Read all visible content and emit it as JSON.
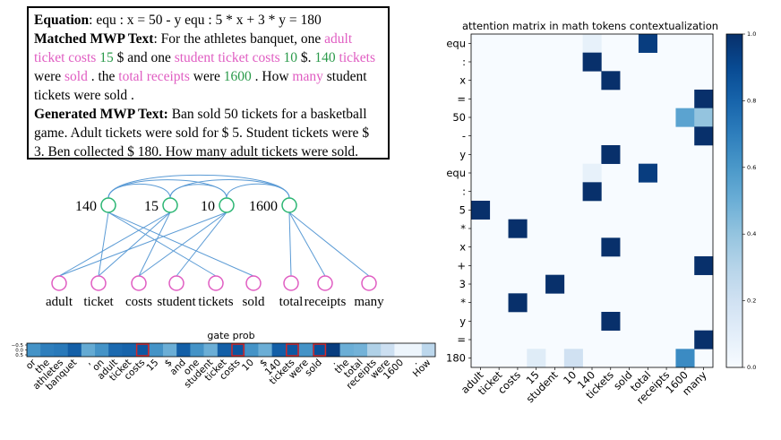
{
  "textbox": {
    "equation_label": "Equation",
    "equation_text": ": equ : x = 50 - y equ : 5 * x + 3 * y = 180",
    "matched_label": "Matched MWP Text",
    "matched_segments": [
      {
        "t": ": For the athletes banquet, one ",
        "c": "black"
      },
      {
        "t": "adult ticket costs",
        "c": "pink"
      },
      {
        "t": " ",
        "c": "black"
      },
      {
        "t": "15",
        "c": "green"
      },
      {
        "t": " $ and one ",
        "c": "black"
      },
      {
        "t": "student ticket costs",
        "c": "pink"
      },
      {
        "t": " ",
        "c": "black"
      },
      {
        "t": "10",
        "c": "green"
      },
      {
        "t": " $. ",
        "c": "black"
      },
      {
        "t": "140",
        "c": "green"
      },
      {
        "t": " ",
        "c": "black"
      },
      {
        "t": "tickets",
        "c": "pink"
      },
      {
        "t": " were ",
        "c": "black"
      },
      {
        "t": "sold",
        "c": "pink"
      },
      {
        "t": " . the ",
        "c": "black"
      },
      {
        "t": "total receipts",
        "c": "pink"
      },
      {
        "t": " were ",
        "c": "black"
      },
      {
        "t": "1600",
        "c": "green"
      },
      {
        "t": " . How ",
        "c": "black"
      },
      {
        "t": "many",
        "c": "pink"
      },
      {
        "t": " student tickets were sold .",
        "c": "black"
      }
    ],
    "generated_label": "Generated MWP Text:",
    "generated_text": " Ban sold 50 tickets for a basketball game. Adult tickets were sold for $ 5. Student tickets were $ 3. Ben collected $ 180. How many adult tickets were sold."
  },
  "graph": {
    "numbers": [
      "140",
      "15",
      "10",
      "1600"
    ],
    "words": [
      "adult",
      "ticket",
      "costs",
      "student",
      "tickets",
      "sold",
      "total",
      "receipts",
      "many"
    ],
    "edges": [
      [
        0,
        1
      ],
      [
        0,
        4
      ],
      [
        0,
        5
      ],
      [
        1,
        0
      ],
      [
        1,
        1
      ],
      [
        1,
        2
      ],
      [
        2,
        0
      ],
      [
        2,
        2
      ],
      [
        2,
        3
      ],
      [
        3,
        6
      ],
      [
        3,
        7
      ],
      [
        3,
        8
      ]
    ],
    "top_arcs": [
      [
        0,
        1
      ],
      [
        0,
        2
      ],
      [
        0,
        3
      ],
      [
        1,
        2
      ],
      [
        1,
        3
      ],
      [
        2,
        3
      ]
    ],
    "number_color": "#2bb673",
    "word_color": "#e05dc2",
    "edge_color": "#5b9bd5"
  },
  "gate": {
    "title": "gate prob",
    "yticks": [
      "−0.5",
      "0.0",
      "0.5"
    ],
    "tokens": [
      "or",
      "the",
      "athletes",
      "banquet",
      ",",
      "on",
      "adult",
      "ticket",
      "costs",
      "15",
      "$",
      "and",
      "one",
      "student",
      "ticket",
      "costs",
      "10",
      "$",
      "140",
      "tickets",
      "were",
      "sold",
      ".",
      "the",
      "total",
      "receipts",
      "were",
      "1600",
      ".",
      "How"
    ],
    "values": [
      0.62,
      0.7,
      0.72,
      0.82,
      0.52,
      0.62,
      0.78,
      0.8,
      0.85,
      0.62,
      0.5,
      0.82,
      0.62,
      0.5,
      0.82,
      0.86,
      0.62,
      0.5,
      0.82,
      0.85,
      0.62,
      0.88,
      0.95,
      0.5,
      0.48,
      0.32,
      0.22,
      0.05,
      0.05,
      0.28
    ],
    "highlight": [
      8,
      15,
      19,
      21
    ],
    "highlight_color": "#d62728"
  },
  "heatmap": {
    "title": "attention matrix in math tokens contextualization",
    "rows": [
      "equ",
      ":",
      "x",
      "=",
      "50",
      "-",
      "y",
      "equ",
      ":",
      "5",
      "*",
      "x",
      "+",
      "3",
      "*",
      "y",
      "=",
      "180"
    ],
    "cols": [
      "adult",
      "ticket",
      "costs",
      "15",
      "student",
      "10",
      "140",
      "tickets",
      "sold",
      "total",
      "receipts",
      "1600",
      "many"
    ],
    "cells": [
      [
        0,
        6,
        0.08
      ],
      [
        0,
        9,
        0.95
      ],
      [
        1,
        6,
        1.0
      ],
      [
        2,
        7,
        1.0
      ],
      [
        3,
        12,
        1.0
      ],
      [
        4,
        11,
        0.55
      ],
      [
        4,
        12,
        0.4
      ],
      [
        5,
        12,
        1.0
      ],
      [
        6,
        7,
        1.0
      ],
      [
        7,
        6,
        0.08
      ],
      [
        7,
        9,
        0.95
      ],
      [
        8,
        6,
        1.0
      ],
      [
        9,
        0,
        1.0
      ],
      [
        10,
        2,
        1.0
      ],
      [
        11,
        7,
        1.0
      ],
      [
        12,
        12,
        1.0
      ],
      [
        13,
        4,
        1.0
      ],
      [
        14,
        2,
        1.0
      ],
      [
        15,
        7,
        1.0
      ],
      [
        16,
        12,
        1.0
      ],
      [
        17,
        3,
        0.12
      ],
      [
        17,
        5,
        0.2
      ],
      [
        17,
        11,
        0.65
      ]
    ],
    "colorbar_ticks": [
      "0.0",
      "0.2",
      "0.4",
      "0.6",
      "0.8",
      "1.0"
    ]
  }
}
